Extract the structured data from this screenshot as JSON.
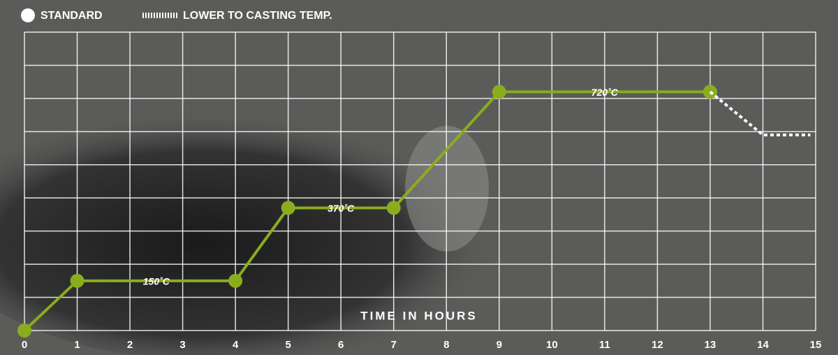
{
  "chart_data": {
    "type": "line",
    "x_label": "TIME IN HOURS",
    "series": [
      {
        "name": "STANDARD",
        "color": "#8aad1e",
        "style": "solid",
        "x": [
          0,
          1,
          4,
          5,
          7,
          9,
          13
        ],
        "values": [
          0,
          150,
          150,
          370,
          370,
          720,
          720
        ],
        "value_labels": [
          null,
          "150˚C",
          null,
          "370˚C",
          null,
          "720˚C",
          null
        ]
      },
      {
        "name": "LOWER TO CASTING TEMP.",
        "color": "#ffffff",
        "style": "dashed",
        "x": [
          13,
          14,
          14.9
        ],
        "values": [
          720,
          590,
          590
        ]
      }
    ],
    "xlim": [
      0,
      15
    ],
    "xticks": [
      0,
      1,
      2,
      3,
      4,
      5,
      6,
      7,
      8,
      9,
      10,
      11,
      12,
      13,
      14,
      15
    ],
    "ylim": [
      0,
      900
    ],
    "yticks": [
      0,
      100,
      200,
      300,
      400,
      500,
      600,
      700,
      800,
      900
    ],
    "grid": true
  }
}
